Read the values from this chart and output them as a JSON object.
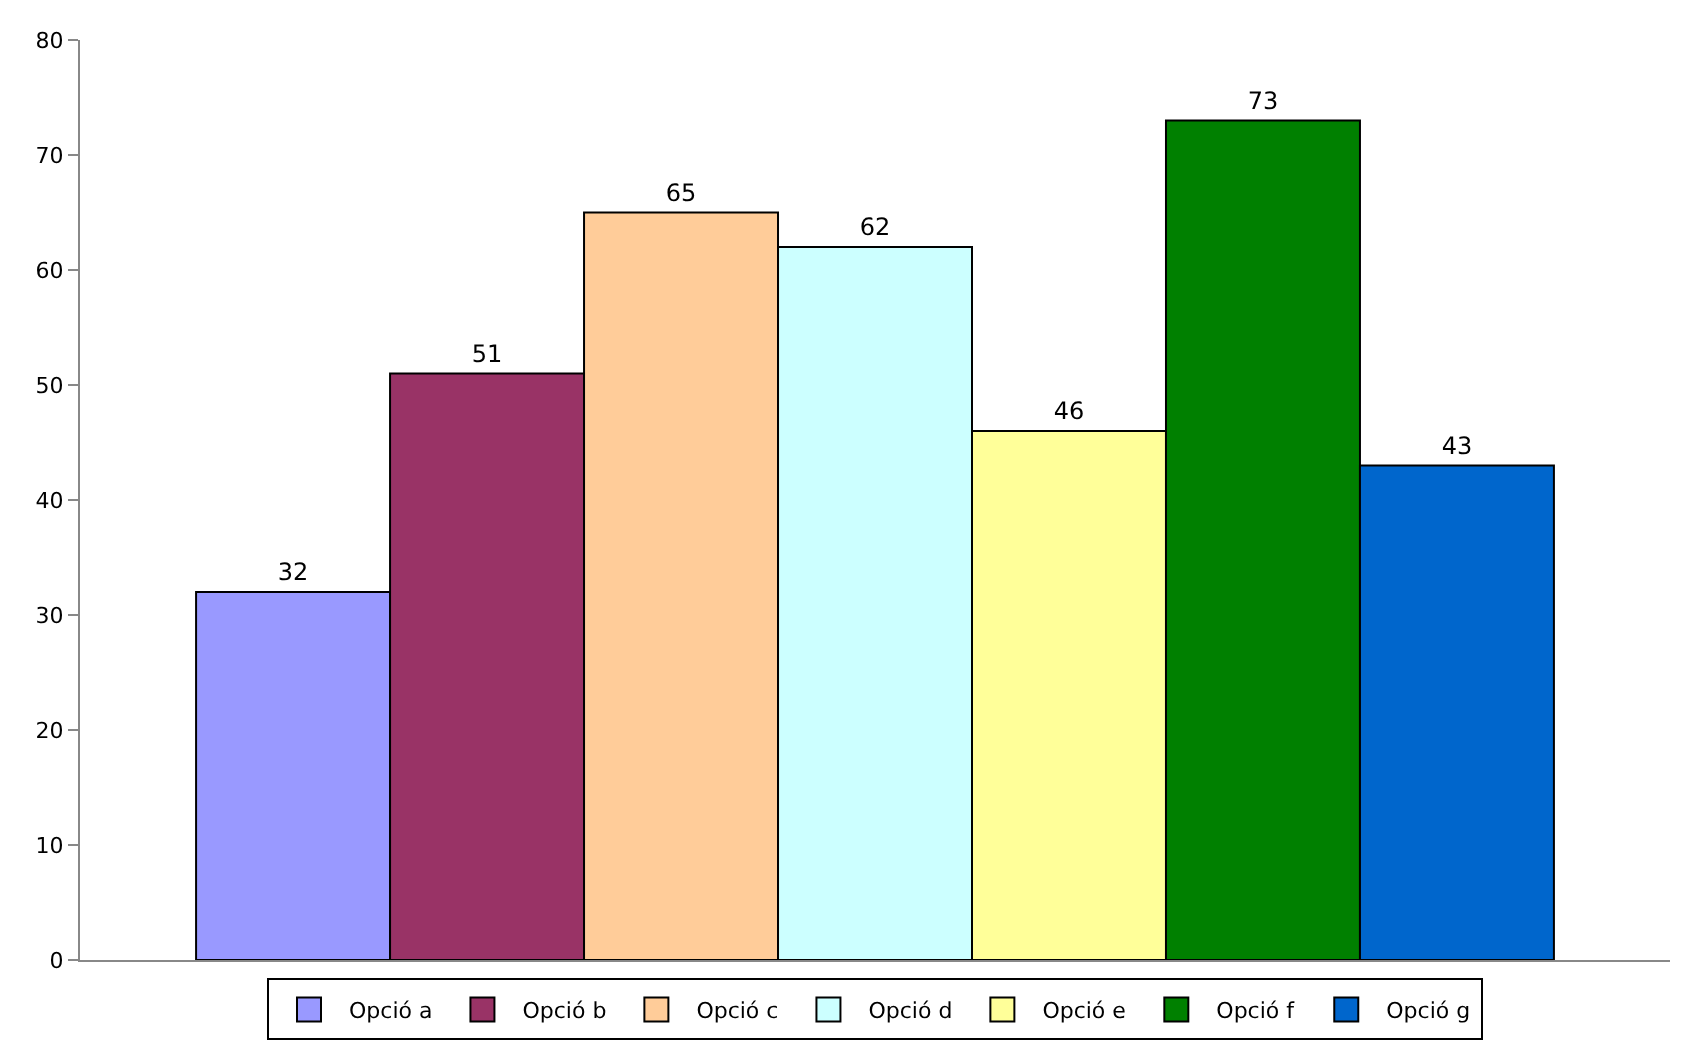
{
  "chart_data": {
    "type": "bar",
    "categories": [
      null
    ],
    "series": [
      {
        "name": "Opció a",
        "color": "#9999ff",
        "values": [
          32
        ]
      },
      {
        "name": "Opció b",
        "color": "#993366",
        "values": [
          51
        ]
      },
      {
        "name": "Opció c",
        "color": "#ffcc99",
        "values": [
          65
        ]
      },
      {
        "name": "Opció d",
        "color": "#ccffff",
        "values": [
          62
        ]
      },
      {
        "name": "Opció e",
        "color": "#ffff99",
        "values": [
          46
        ]
      },
      {
        "name": "Opció f",
        "color": "#008000",
        "values": [
          73
        ]
      },
      {
        "name": "Opció g",
        "color": "#0066cc",
        "values": [
          43
        ]
      }
    ],
    "ylim": [
      0,
      80
    ],
    "yticks": [
      0,
      10,
      20,
      30,
      40,
      50,
      60,
      70,
      80
    ],
    "legend": "bottom",
    "data_labels": true
  }
}
